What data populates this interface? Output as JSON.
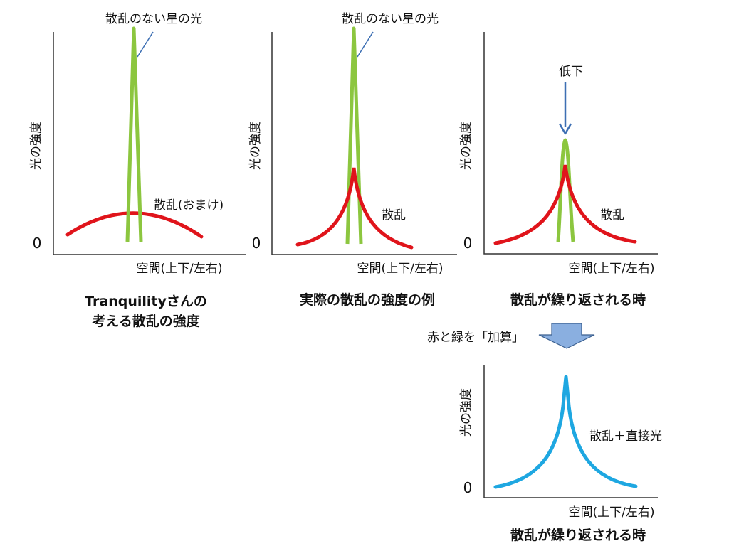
{
  "colors": {
    "direct_light": "#8cc63f",
    "scatter": "#e0141b",
    "sum": "#1ea7e1",
    "arrow_blue": "#3d6fb3",
    "block_arrow": "#8aafe0",
    "callout_line": "#3d6fb3"
  },
  "panels": [
    {
      "y_label": "光の強度",
      "zero": "0",
      "x_label": "空間(上下/左右)",
      "peak_label": "散乱のない星の光",
      "scatter_label": "散乱(おまけ)",
      "caption_line1": "Tranquilityさんの",
      "caption_line2": "考える散乱の強度"
    },
    {
      "y_label": "光の強度",
      "zero": "0",
      "x_label": "空間(上下/左右)",
      "peak_label": "散乱のない星の光",
      "scatter_label": "散乱",
      "caption_line1": "実際の散乱の強度の例"
    },
    {
      "y_label": "光の強度",
      "zero": "0",
      "x_label": "空間(上下/左右)",
      "arrow_label": "低下",
      "scatter_label": "散乱",
      "caption_line1": "散乱が繰り返される時"
    },
    {
      "y_label": "光の強度",
      "zero": "0",
      "x_label": "空間(上下/左右)",
      "sum_label": "散乱＋直接光",
      "caption_line1": "散乱が繰り返される時"
    }
  ],
  "add_note": "赤と緑を「加算」"
}
